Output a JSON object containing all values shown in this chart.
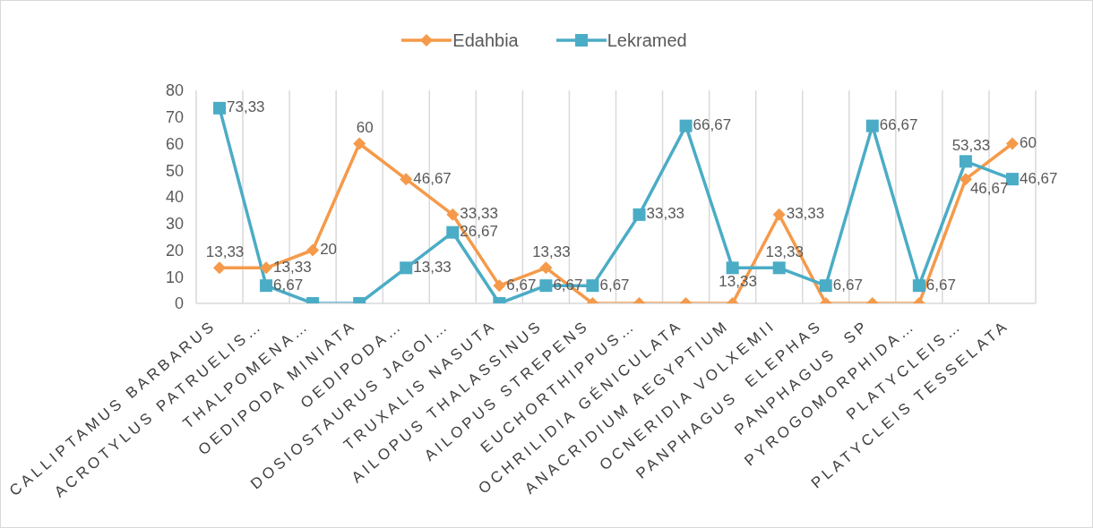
{
  "chart_data": {
    "type": "line",
    "categories": [
      "CALLIPTAMUS BARBARUS",
      "ACROTYLUS PATRUELIS…",
      "THALPOMENA…",
      "OEDIPODA MINIATA",
      "OEDIPODA…",
      "DOSIOSTAURUS JAGOI…",
      "TRUXALIS NASUTA",
      "AILOPUS THALASSINUS",
      "AILOPUS STREPENS",
      "EUCHORTHIPPUS…",
      "OCHRILIDIA GÉNICULATA",
      "ANACRIDIUM AEGYPTIUM",
      "OCNERIDIA VOLXEMII",
      "PANPHAGUS  ELEPHAS",
      "PANPHAGUS  SP",
      "PYROGOMORPHIDA…",
      "PLATYCLEIS…",
      "PLATYCLEIS TESSELATA"
    ],
    "series": [
      {
        "name": "Edahbia",
        "color": "#f59a4a",
        "marker": "diamond",
        "values": [
          13.33,
          13.33,
          20,
          60,
          46.67,
          33.33,
          6.67,
          13.33,
          0,
          0,
          0,
          0,
          33.33,
          0,
          0,
          0,
          46.67,
          60
        ],
        "value_labels": [
          "13,33",
          "13,33",
          "20",
          "60",
          "46,67",
          "33,33",
          "6,67",
          "13,33",
          null,
          null,
          null,
          null,
          "33,33",
          null,
          null,
          null,
          "46,67",
          "60"
        ]
      },
      {
        "name": "Lekramed",
        "color": "#4bacc6",
        "marker": "square",
        "values": [
          73.33,
          6.67,
          0,
          0,
          13.33,
          26.67,
          0,
          6.67,
          6.67,
          33.33,
          66.67,
          13.33,
          13.33,
          6.67,
          66.67,
          6.67,
          53.33,
          46.67
        ],
        "value_labels": [
          "73,33",
          "6,67",
          null,
          null,
          "13,33",
          "26,67",
          null,
          "6,67",
          "6,67",
          "33,33",
          "66,67",
          "13,33",
          "13,33",
          "6,67",
          "66,67",
          "6,67",
          "53,33",
          "46,67"
        ]
      }
    ],
    "ylim": [
      0,
      80
    ],
    "yticks": [
      0,
      10,
      20,
      30,
      40,
      50,
      60,
      70,
      80
    ],
    "grid": "x",
    "legend": "top"
  }
}
